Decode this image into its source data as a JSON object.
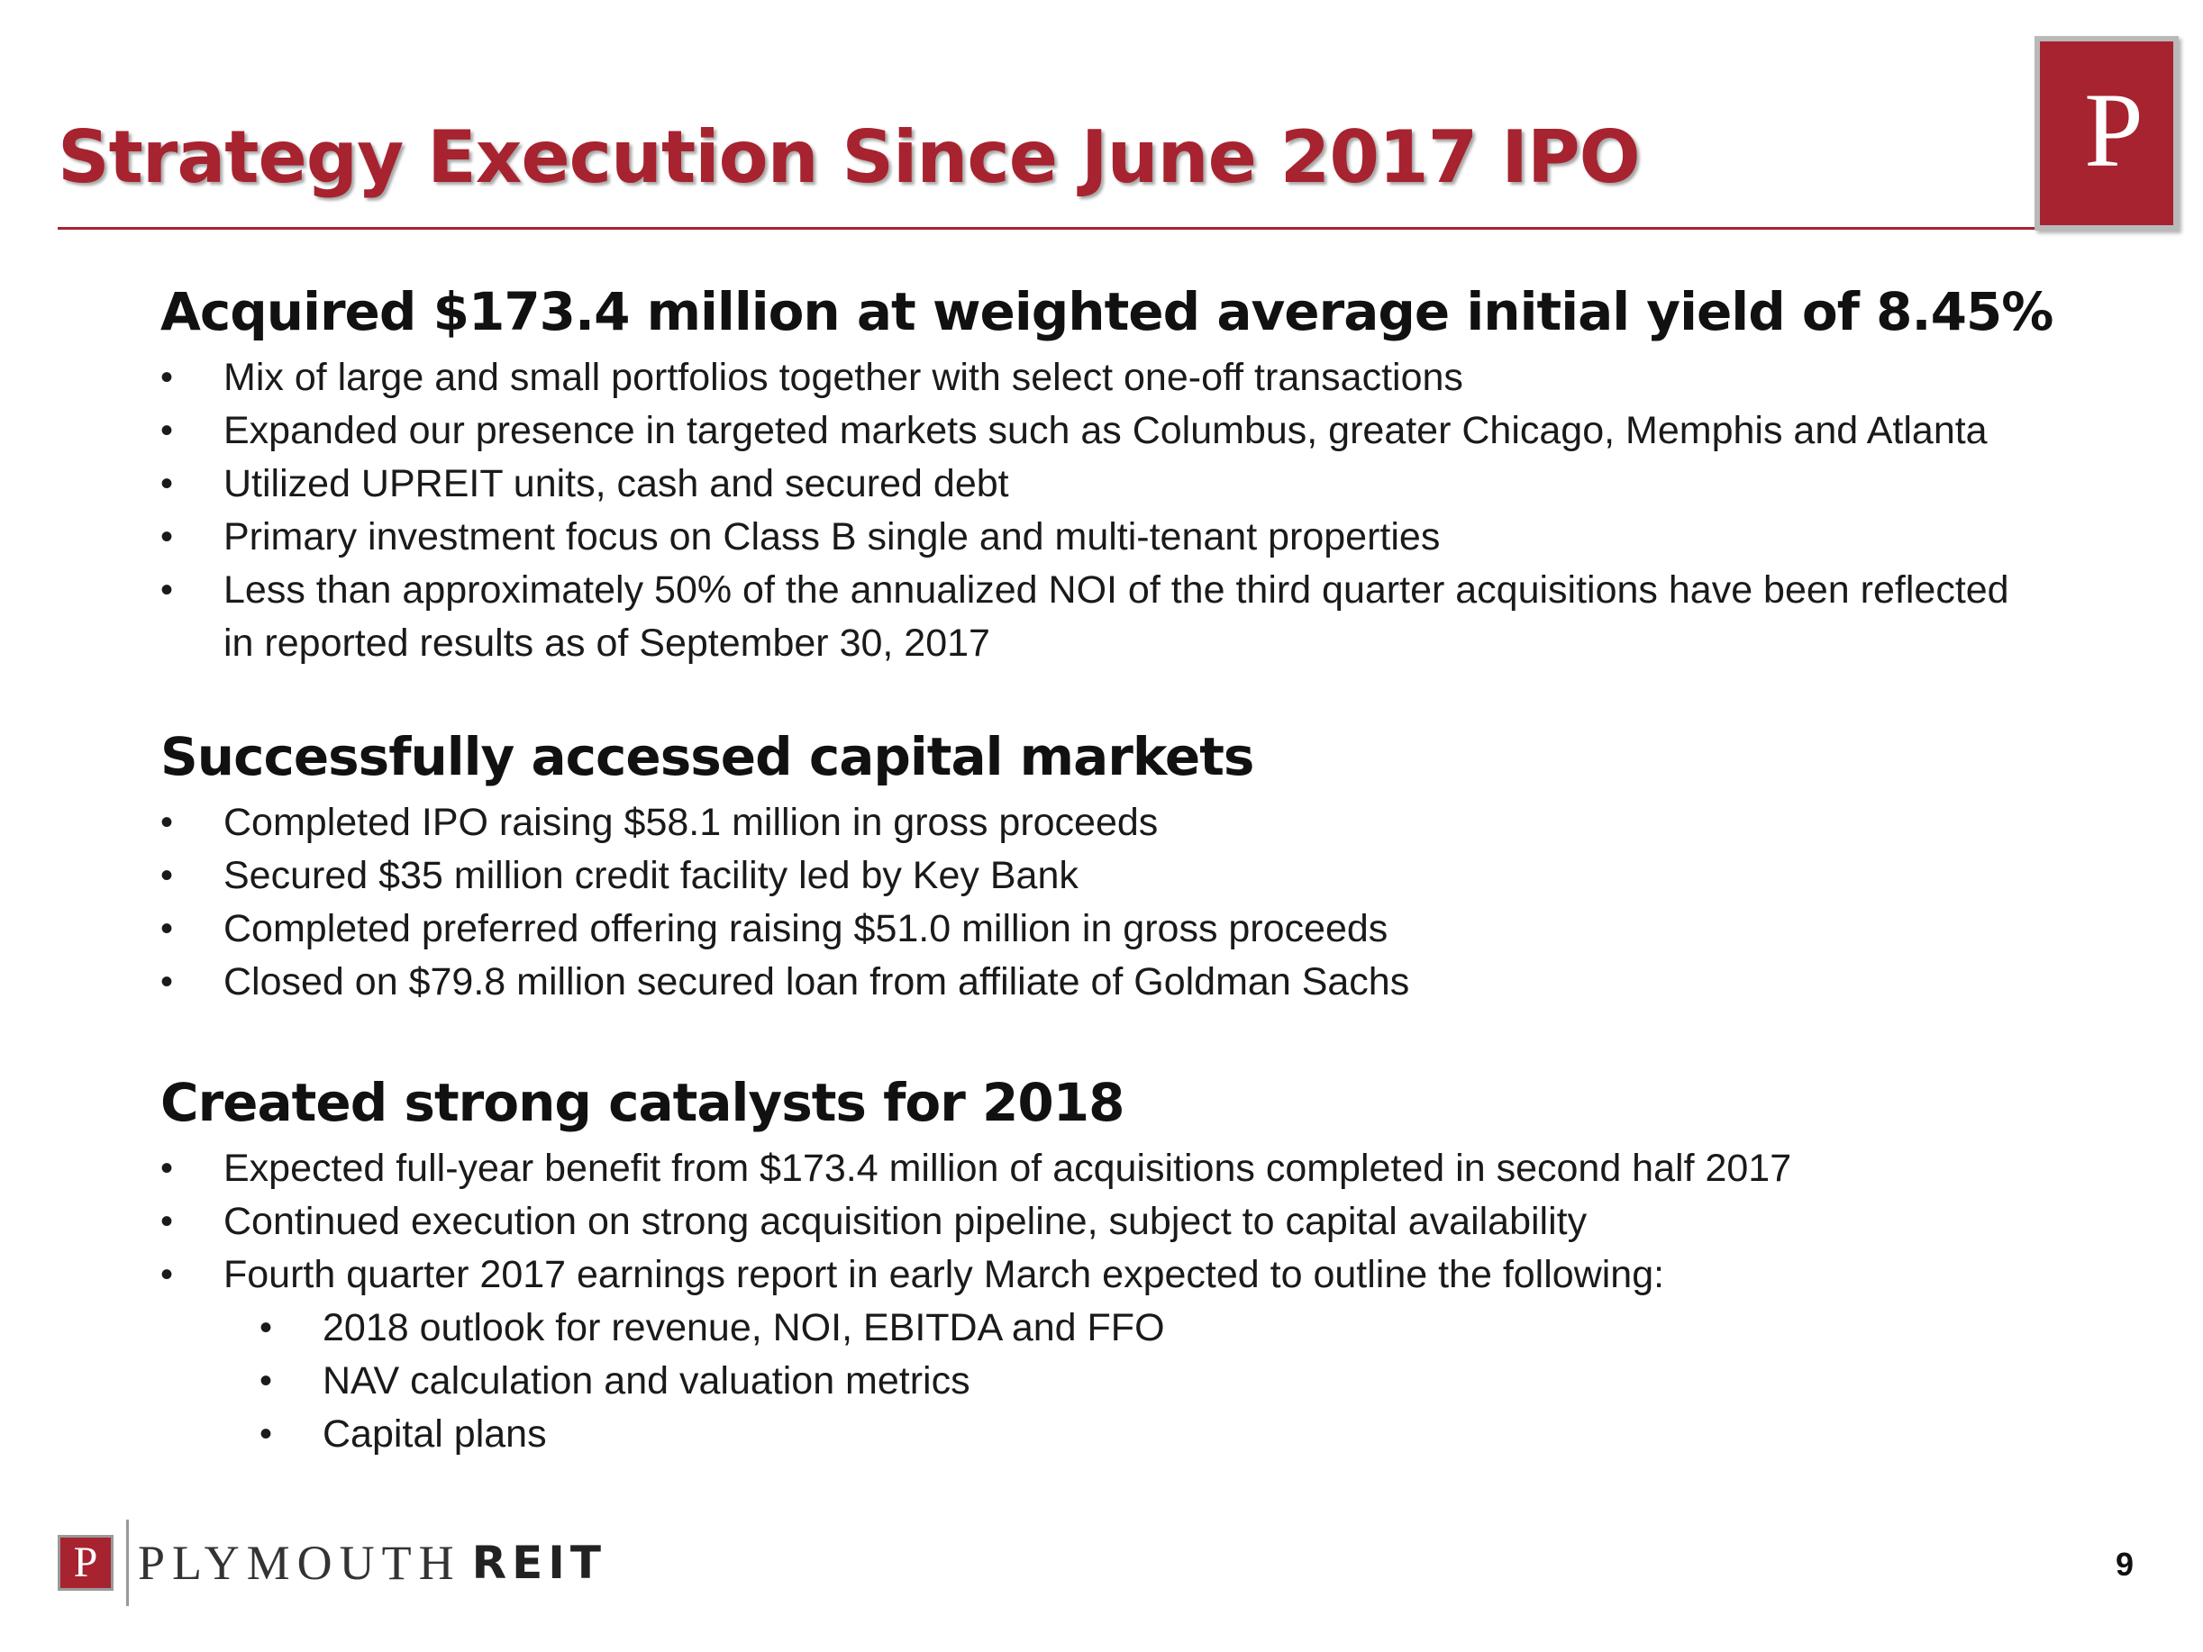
{
  "slide": {
    "title": "Strategy Execution Since June 2017 IPO",
    "logo_letter": "P",
    "page_number": "9"
  },
  "sections": [
    {
      "heading": "Acquired $173.4 million at weighted average initial yield of 8.45%",
      "bullets": [
        "Mix of large and small portfolios together with select one-off transactions",
        "Expanded our presence in targeted markets such as Columbus, greater Chicago, Memphis and Atlanta",
        "Utilized UPREIT units, cash and secured debt",
        "Primary investment focus on Class B single and multi-tenant properties",
        "Less than approximately 50% of the annualized NOI of the third quarter acquisitions have been reflected in reported results as of September 30, 2017"
      ]
    },
    {
      "heading": "Successfully accessed capital markets",
      "bullets": [
        "Completed IPO raising $58.1 million in gross proceeds",
        "Secured $35 million credit facility led by Key Bank",
        "Completed preferred offering raising $51.0 million in gross proceeds",
        "Closed on $79.8 million secured loan from affiliate of Goldman Sachs"
      ]
    },
    {
      "heading": "Created strong catalysts for 2018",
      "bullets": [
        "Expected full-year benefit from $173.4 million of acquisitions completed in second half 2017",
        "Continued execution on strong acquisition pipeline, subject to capital availability",
        "Fourth quarter 2017 earnings report in early March expected to outline the following:"
      ],
      "sub_bullets": [
        "2018 outlook for revenue, NOI, EBITDA and FFO",
        "NAV calculation and valuation metrics",
        "Capital plans"
      ]
    }
  ],
  "footer": {
    "logo_letter": "P",
    "company_name": "PLYMOUTH",
    "company_suffix": "REIT"
  },
  "colors": {
    "brand_red": "#a6232f",
    "text": "#1a1a1a"
  }
}
